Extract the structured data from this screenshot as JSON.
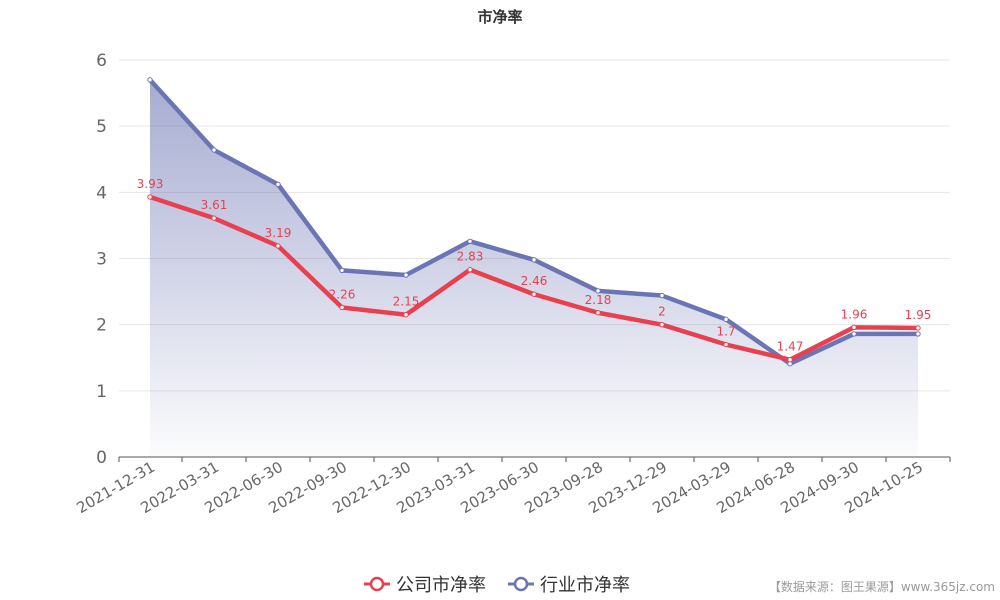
{
  "chart_data": {
    "type": "line",
    "title": "市净率",
    "categories": [
      "2021-12-31",
      "2022-03-31",
      "2022-06-30",
      "2022-09-30",
      "2022-12-30",
      "2023-03-31",
      "2023-06-30",
      "2023-09-28",
      "2023-12-29",
      "2024-03-29",
      "2024-06-28",
      "2024-09-30",
      "2024-10-25"
    ],
    "series": [
      {
        "name": "公司市净率",
        "color": "#e8404f",
        "values": [
          3.93,
          3.61,
          3.19,
          2.26,
          2.15,
          2.83,
          2.46,
          2.18,
          2,
          1.7,
          1.47,
          1.96,
          1.95
        ],
        "data_labels": [
          "3.93",
          "3.61",
          "3.19",
          "2.26",
          "2.15",
          "2.83",
          "2.46",
          "2.18",
          "2",
          "1.7",
          "1.47",
          "1.96",
          "1.95"
        ]
      },
      {
        "name": "行业市净率",
        "color": "#6c75b3",
        "values": [
          5.7,
          4.64,
          4.12,
          2.82,
          2.75,
          3.26,
          2.98,
          2.51,
          2.44,
          2.08,
          1.41,
          1.86,
          1.86
        ],
        "area_fill": true
      }
    ],
    "ylim": [
      0,
      6
    ],
    "yticks": [
      0,
      1,
      2,
      3,
      4,
      5,
      6
    ],
    "xlabel": "",
    "ylabel": "",
    "grid": true,
    "legend_position": "bottom-center"
  },
  "watermark": "【数据来源：图王果源】www.365jz.com"
}
